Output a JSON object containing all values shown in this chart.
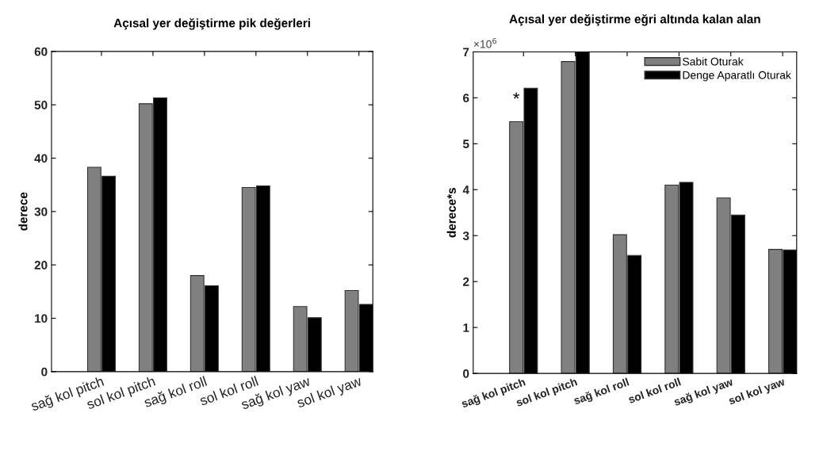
{
  "chart_data": [
    {
      "type": "bar",
      "title": "Açısal yer değiştirme pik değerleri",
      "ylabel": "derece",
      "categories": [
        "sağ kol pitch",
        "sol kol pitch",
        "sağ kol roll",
        "sol kol roll",
        "sağ kol yaw",
        "sol kol yaw"
      ],
      "series": [
        {
          "color": "#808080",
          "values": [
            38.3,
            50.2,
            18,
            34.5,
            12.2,
            15.2
          ]
        },
        {
          "color": "#000000",
          "values": [
            36.6,
            51.3,
            16.1,
            34.8,
            10.1,
            12.6
          ]
        }
      ],
      "ylim": [
        0,
        60
      ],
      "yticks": [
        0,
        10,
        20,
        30,
        40,
        50,
        60
      ],
      "grid": false,
      "legend": false
    },
    {
      "type": "bar",
      "title": "Açısal yer değiştirme eğri altında kalan alan",
      "ylabel": "derece*s",
      "categories": [
        "sağ kol pitch",
        "sol kol pitch",
        "sağ kol roll",
        "sol kol roll",
        "sağ kol yaw",
        "sol kol yaw"
      ],
      "series": [
        {
          "name": "Sabit Oturak",
          "color": "#808080",
          "values": [
            5.48,
            6.79,
            3.02,
            4.1,
            3.82,
            2.7
          ]
        },
        {
          "name": "Denge Aparatlı Oturak",
          "color": "#000000",
          "values": [
            6.21,
            7.0,
            2.57,
            4.16,
            3.45,
            2.69
          ]
        }
      ],
      "ylim": [
        0,
        7
      ],
      "yticks": [
        0,
        1,
        2,
        3,
        4,
        5,
        6,
        7
      ],
      "grid": false,
      "legend": "top right",
      "annotations": [
        "×10$^{6}$",
        {
          "text": "*",
          "x": "sağ kol pitch",
          "y": 5.95
        }
      ]
    }
  ]
}
